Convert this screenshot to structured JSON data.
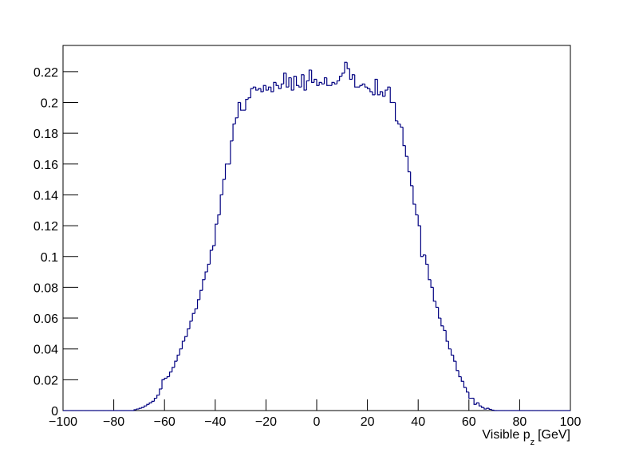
{
  "chart_data": {
    "type": "histogram",
    "x_label": {
      "text": "Visible p",
      "sub": "z",
      "unit": "[GeV]"
    },
    "color": "#000080",
    "bins": [
      -100,
      -99,
      -98,
      -97,
      -96,
      -95,
      -94,
      -93,
      -92,
      -91,
      -90,
      -89,
      -88,
      -87,
      -86,
      -85,
      -84,
      -83,
      -82,
      -81,
      -80,
      -79,
      -78,
      -77,
      -76,
      -75,
      -74,
      -73,
      -72,
      -71,
      -70,
      -69,
      -68,
      -67,
      -66,
      -65,
      -64,
      -63,
      -62,
      -61,
      -60,
      -59,
      -58,
      -57,
      -56,
      -55,
      -54,
      -53,
      -52,
      -51,
      -50,
      -49,
      -48,
      -47,
      -46,
      -45,
      -44,
      -43,
      -42,
      -41,
      -40,
      -39,
      -38,
      -37,
      -36,
      -35,
      -34,
      -33,
      -32,
      -31,
      -30,
      -29,
      -28,
      -27,
      -26,
      -25,
      -24,
      -23,
      -22,
      -21,
      -20,
      -19,
      -18,
      -17,
      -16,
      -15,
      -14,
      -13,
      -12,
      -11,
      -10,
      -9,
      -8,
      -7,
      -6,
      -5,
      -4,
      -3,
      -2,
      -1,
      0,
      1,
      2,
      3,
      4,
      5,
      6,
      7,
      8,
      9,
      10,
      11,
      12,
      13,
      14,
      15,
      16,
      17,
      18,
      19,
      20,
      21,
      22,
      23,
      24,
      25,
      26,
      27,
      28,
      29,
      30,
      31,
      32,
      33,
      34,
      35,
      36,
      37,
      38,
      39,
      40,
      41,
      42,
      43,
      44,
      45,
      46,
      47,
      48,
      49,
      50,
      51,
      52,
      53,
      54,
      55,
      56,
      57,
      58,
      59,
      60,
      61,
      62,
      63,
      64,
      65,
      66,
      67,
      68,
      69,
      70,
      71,
      72,
      73,
      74,
      75,
      76,
      77,
      78,
      79,
      80,
      81,
      82,
      83,
      84,
      85,
      86,
      87,
      88,
      89,
      90,
      91,
      92,
      93,
      94,
      95,
      96,
      97,
      98,
      99,
      100
    ],
    "values": [
      0,
      0,
      0,
      0,
      0,
      0,
      0,
      0,
      0,
      0,
      0,
      0,
      0,
      0,
      0,
      0,
      0,
      0,
      0,
      0,
      0,
      0,
      0,
      0,
      0,
      0,
      0,
      0,
      0.0005,
      0.001,
      0.0015,
      0.002,
      0.003,
      0.004,
      0.005,
      0.006,
      0.008,
      0.01,
      0.014,
      0.02,
      0.021,
      0.022,
      0.025,
      0.028,
      0.032,
      0.036,
      0.04,
      0.045,
      0.048,
      0.053,
      0.058,
      0.063,
      0.066,
      0.072,
      0.078,
      0.085,
      0.09,
      0.095,
      0.104,
      0.107,
      0.121,
      0.127,
      0.14,
      0.15,
      0.16,
      0.16,
      0.175,
      0.186,
      0.19,
      0.2,
      0.195,
      0.195,
      0.202,
      0.203,
      0.209,
      0.21,
      0.208,
      0.209,
      0.207,
      0.211,
      0.208,
      0.21,
      0.207,
      0.213,
      0.211,
      0.209,
      0.212,
      0.219,
      0.21,
      0.216,
      0.208,
      0.217,
      0.211,
      0.21,
      0.218,
      0.208,
      0.214,
      0.221,
      0.213,
      0.215,
      0.211,
      0.213,
      0.212,
      0.216,
      0.211,
      0.211,
      0.213,
      0.212,
      0.214,
      0.217,
      0.219,
      0.226,
      0.222,
      0.215,
      0.218,
      0.21,
      0.21,
      0.211,
      0.212,
      0.21,
      0.209,
      0.207,
      0.205,
      0.215,
      0.205,
      0.207,
      0.204,
      0.208,
      0.21,
      0.2,
      0.2,
      0.188,
      0.186,
      0.184,
      0.172,
      0.165,
      0.155,
      0.146,
      0.134,
      0.127,
      0.12,
      0.1,
      0.101,
      0.095,
      0.085,
      0.08,
      0.071,
      0.067,
      0.06,
      0.055,
      0.052,
      0.045,
      0.04,
      0.036,
      0.032,
      0.026,
      0.022,
      0.019,
      0.015,
      0.012,
      0.008,
      0.008,
      0.004,
      0.005,
      0.003,
      0.002,
      0.001,
      0.0015,
      0.0008,
      0.0003,
      0,
      0,
      0,
      0,
      0,
      0,
      0,
      0,
      0,
      0,
      0,
      0,
      0,
      0,
      0,
      0,
      0,
      0,
      0,
      0,
      0,
      0,
      0,
      0,
      0,
      0,
      0,
      0,
      0,
      0
    ],
    "xlim": [
      -100,
      100
    ],
    "ylim": [
      0,
      0.237
    ],
    "xticks": [
      {
        "value": -100,
        "label": "−100"
      },
      {
        "value": -80,
        "label": "−80"
      },
      {
        "value": -60,
        "label": "−60"
      },
      {
        "value": -40,
        "label": "−40"
      },
      {
        "value": -20,
        "label": "−20"
      },
      0,
      20,
      40,
      60,
      80,
      100
    ],
    "yticks": [
      0,
      0.02,
      0.04,
      0.06,
      0.08,
      0.1,
      0.12,
      0.14,
      0.16,
      0.18,
      0.2,
      0.22
    ]
  }
}
